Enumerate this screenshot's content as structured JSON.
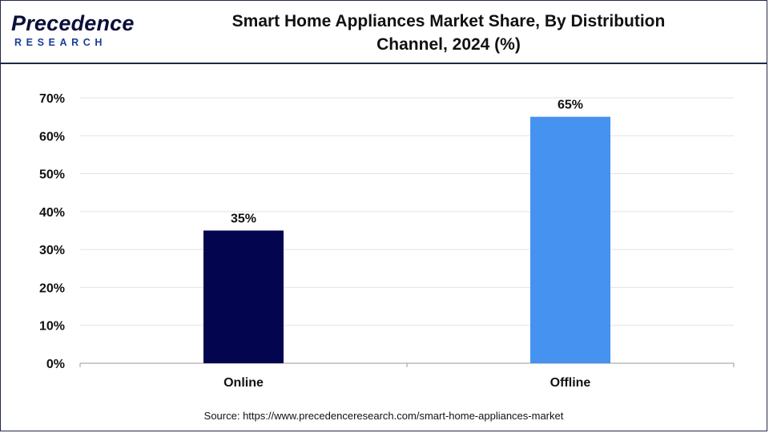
{
  "header": {
    "logo_name": "Precedence",
    "logo_sub": "RESEARCH",
    "title_line1": "Smart Home Appliances Market Share, By Distribution",
    "title_line2": "Channel, 2024 (%)"
  },
  "source": "Source: https://www.precedenceresearch.com/smart-home-appliances-market",
  "chart_data": {
    "type": "bar",
    "title": "Smart Home Appliances Market Share, By Distribution Channel, 2024 (%)",
    "categories": [
      "Online",
      "Offline"
    ],
    "values": [
      35,
      65
    ],
    "data_labels": [
      "35%",
      "65%"
    ],
    "colors": [
      "#03064f",
      "#4592f0"
    ],
    "ylim": [
      0,
      70
    ],
    "yticks": [
      0,
      10,
      20,
      30,
      40,
      50,
      60,
      70
    ],
    "ytick_labels": [
      "0%",
      "10%",
      "20%",
      "30%",
      "40%",
      "50%",
      "60%",
      "70%"
    ],
    "grid": true,
    "legend": "none"
  }
}
